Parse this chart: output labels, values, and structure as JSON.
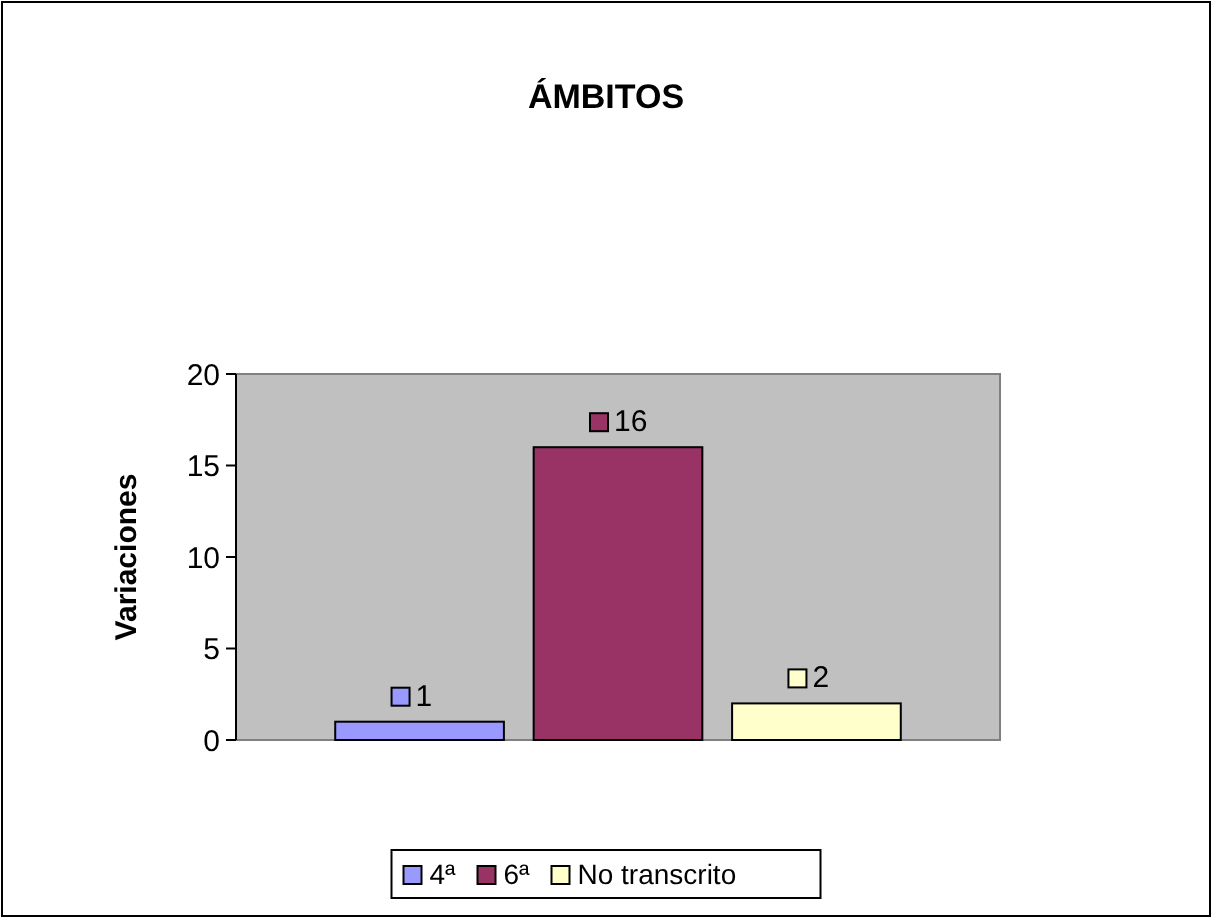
{
  "chart_data": {
    "type": "bar",
    "title": "ÁMBITOS",
    "ylabel": "Variaciones",
    "categories": [
      null
    ],
    "series": [
      {
        "name": "4ª",
        "color": "#9999ff",
        "values": [
          1
        ]
      },
      {
        "name": "6ª",
        "color": "#993366",
        "values": [
          16
        ]
      },
      {
        "name": "No transcrito",
        "color": "#ffffcc",
        "values": [
          2
        ]
      }
    ],
    "ylim": [
      0,
      20
    ],
    "yticks": [
      0,
      5,
      10,
      15,
      20
    ],
    "grid": false,
    "legend": "bottom",
    "data_labels": true
  }
}
